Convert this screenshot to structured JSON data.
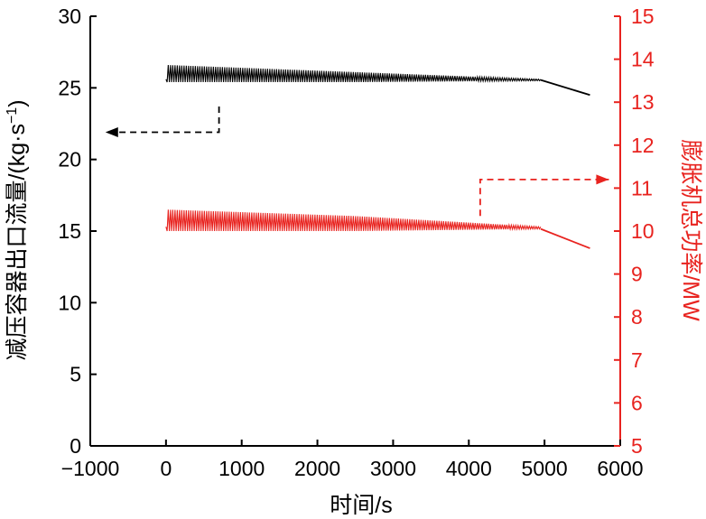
{
  "chart_data": {
    "type": "line",
    "xlabel": "时间/s",
    "ylabel_left": "减压容器出口流量/(kg·s",
    "ylabel_left_sup": "−1",
    "ylabel_left_close": ")",
    "ylabel_right": "膨胀机总功率/MW",
    "xlim": [
      -1000,
      6000
    ],
    "ylim_left": [
      0,
      30
    ],
    "ylim_right": [
      5,
      15
    ],
    "x_ticks": [
      "−1000",
      "0",
      "1000",
      "2000",
      "3000",
      "4000",
      "5000",
      "6000"
    ],
    "y_left_ticks": [
      "0",
      "5",
      "10",
      "15",
      "20",
      "25",
      "30"
    ],
    "y_right_ticks": [
      "5",
      "6",
      "7",
      "8",
      "9",
      "10",
      "11",
      "12",
      "13",
      "14",
      "15"
    ],
    "grid": false,
    "series": [
      {
        "axis": "left",
        "color": "#000000",
        "oscillation_until": 4950,
        "upper_envelope": [
          [
            0,
            26.6
          ],
          [
            2500,
            26.1
          ],
          [
            4950,
            25.6
          ]
        ],
        "lower_envelope": [
          [
            0,
            25.4
          ],
          [
            2500,
            25.4
          ],
          [
            4950,
            25.5
          ]
        ],
        "tail": [
          [
            4950,
            25.55
          ],
          [
            5600,
            24.5
          ]
        ]
      },
      {
        "axis": "right",
        "color": "#e8231f",
        "oscillation_until": 4950,
        "upper_envelope": [
          [
            0,
            10.5
          ],
          [
            2500,
            10.35
          ],
          [
            4950,
            10.1
          ]
        ],
        "lower_envelope": [
          [
            0,
            10.0
          ],
          [
            2500,
            10.0
          ],
          [
            4950,
            10.05
          ]
        ],
        "tail": [
          [
            4950,
            10.05
          ],
          [
            5600,
            9.6
          ]
        ]
      }
    ],
    "annotations": [
      {
        "color": "#000000",
        "points": [
          [
            700,
            23.7
          ],
          [
            700,
            21.9
          ],
          [
            -800,
            21.9
          ]
        ]
      },
      {
        "color": "#e8231f",
        "axis": "right",
        "points": [
          [
            4150,
            10.35
          ],
          [
            4150,
            11.2
          ],
          [
            5850,
            11.2
          ]
        ]
      }
    ],
    "colors": {
      "left_axis": "#000000",
      "right_axis": "#e8231f"
    }
  }
}
